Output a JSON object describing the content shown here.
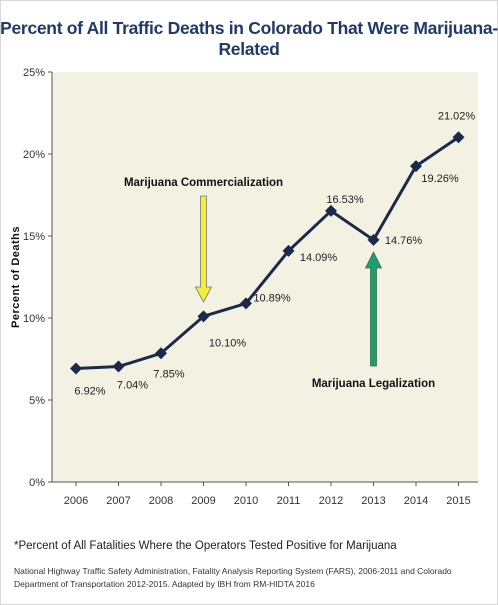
{
  "chart_data": {
    "type": "line",
    "title": "Percent of All Traffic Deaths in Colorado That Were Marijuana-Related",
    "ylabel": "Percent of Deaths",
    "xlabel": "",
    "categories": [
      "2006",
      "2007",
      "2008",
      "2009",
      "2010",
      "2011",
      "2012",
      "2013",
      "2014",
      "2015"
    ],
    "values": [
      6.92,
      7.04,
      7.85,
      10.1,
      10.89,
      14.09,
      16.53,
      14.76,
      19.26,
      21.02
    ],
    "data_labels": [
      "6.92%",
      "7.04%",
      "7.85%",
      "10.10%",
      "10.89%",
      "14.09%",
      "16.53%",
      "14.76%",
      "19.26%",
      "21.02%"
    ],
    "ylim": [
      0,
      25
    ],
    "yticks": [
      0,
      5,
      10,
      15,
      20,
      25
    ],
    "ytick_labels": [
      "0%",
      "5%",
      "10%",
      "15%",
      "20%",
      "25%"
    ],
    "grid": false,
    "line_color": "#1b2a4a",
    "plot_background": "#f3f1e2",
    "annotations": [
      {
        "text": "Marijuana Commercialization",
        "year": "2009",
        "arrow": "down",
        "color": "#f2ef3a"
      },
      {
        "text": "Marijuana Legalization",
        "year": "2013",
        "arrow": "up",
        "color": "#1e9e6a"
      }
    ]
  },
  "footnote": "*Percent of All Fatalities Where the Operators Tested Positive for Marijuana",
  "source": "National Highway Traffic Safety Administration, Fatality Analysis Reporting System (FARS), 2006-2011 and Colorado Department of Transportation 2012-2015. Adapted by IBH from RM-HIDTA 2016"
}
